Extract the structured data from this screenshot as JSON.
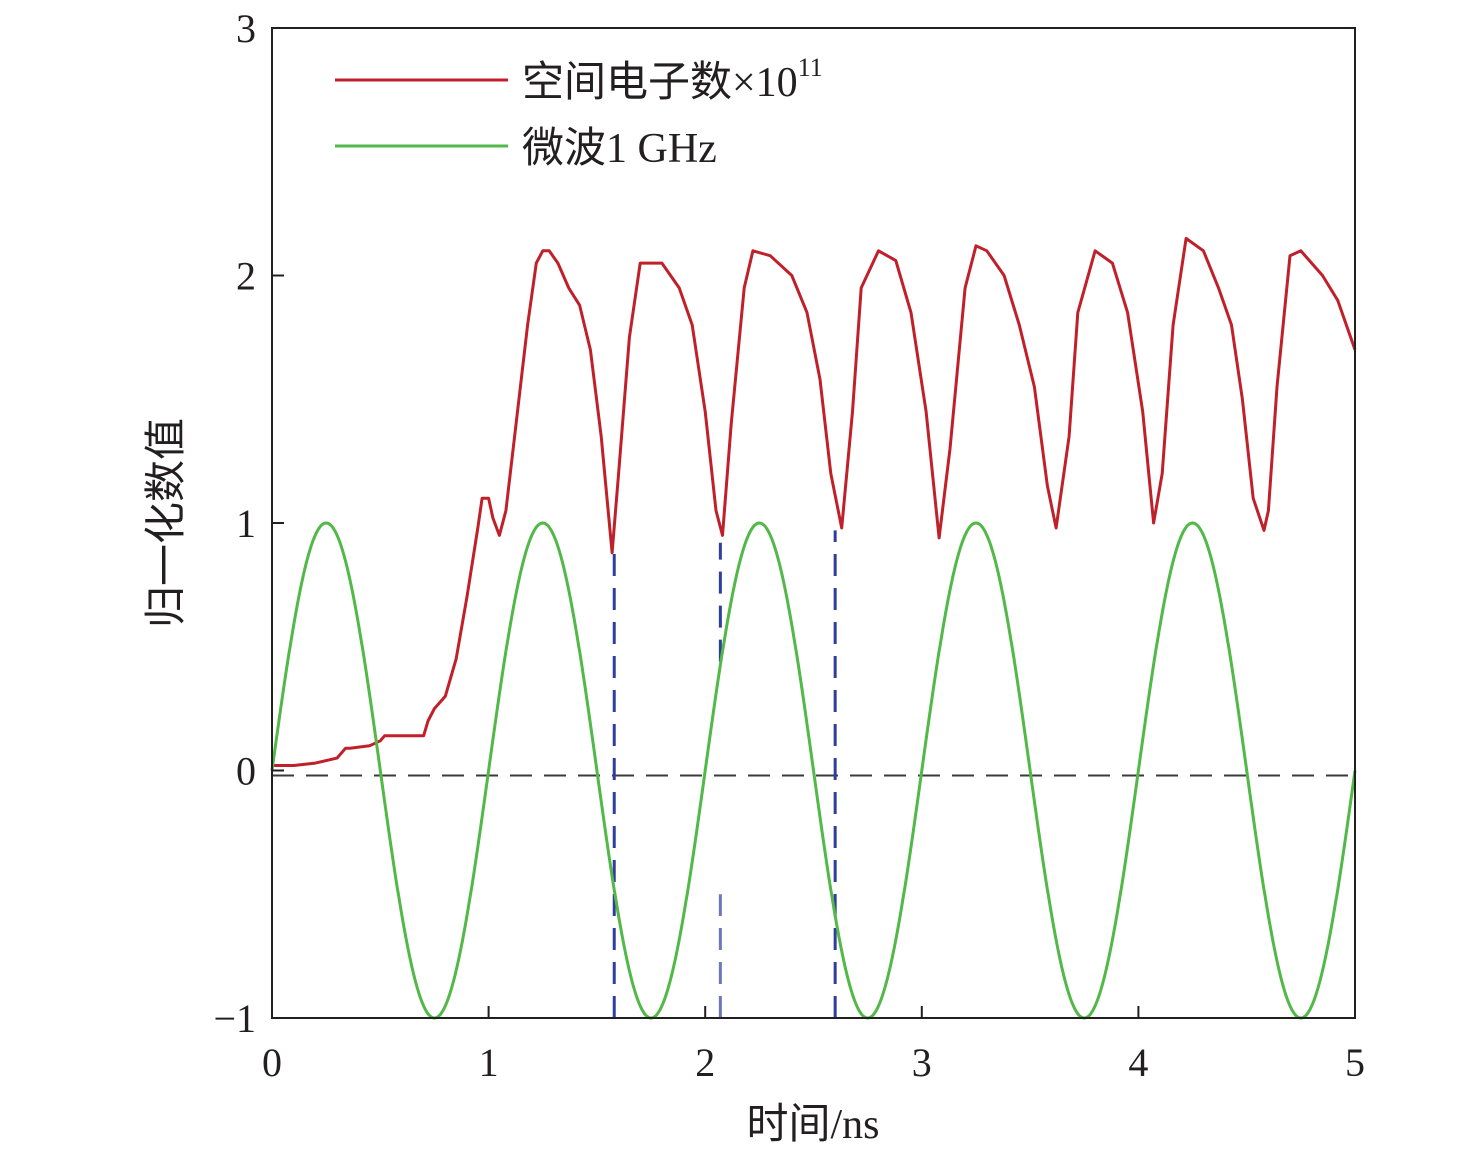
{
  "chart_data": {
    "type": "line",
    "xlabel": "时间/ns",
    "ylabel": "归一化数值",
    "xlim": [
      0,
      5
    ],
    "ylim": [
      -1,
      3
    ],
    "xticks": [
      "0",
      "1",
      "2",
      "3",
      "4",
      "5"
    ],
    "yticks": [
      "−1",
      "0",
      "1",
      "2",
      "3"
    ],
    "grid": false,
    "legend_position": "top-left",
    "legend": {
      "electrons": {
        "base": "空间电子数×10",
        "exp": "11"
      },
      "microwave": "微波1 GHz"
    },
    "series": [
      {
        "name": "空间电子数×10^11",
        "color": "#c0202a",
        "x": [
          0,
          0.1,
          0.2,
          0.3,
          0.34,
          0.36,
          0.45,
          0.5,
          0.52,
          0.55,
          0.6,
          0.7,
          0.72,
          0.75,
          0.8,
          0.85,
          0.9,
          0.95,
          0.97,
          1.0,
          1.02,
          1.05,
          1.08,
          1.12,
          1.18,
          1.22,
          1.25,
          1.28,
          1.32,
          1.37,
          1.42,
          1.47,
          1.52,
          1.57,
          1.6,
          1.65,
          1.7,
          1.76,
          1.8,
          1.88,
          1.94,
          2.0,
          2.05,
          2.08,
          2.12,
          2.18,
          2.22,
          2.3,
          2.4,
          2.47,
          2.53,
          2.58,
          2.63,
          2.68,
          2.72,
          2.8,
          2.88,
          2.95,
          3.02,
          3.08,
          3.13,
          3.2,
          3.25,
          3.3,
          3.38,
          3.45,
          3.52,
          3.58,
          3.62,
          3.68,
          3.72,
          3.8,
          3.88,
          3.95,
          4.02,
          4.07,
          4.11,
          4.16,
          4.22,
          4.3,
          4.37,
          4.43,
          4.48,
          4.53,
          4.58,
          4.6,
          4.64,
          4.7,
          4.75,
          4.85,
          4.92,
          5.0
        ],
        "y": [
          0.02,
          0.02,
          0.03,
          0.05,
          0.09,
          0.09,
          0.1,
          0.12,
          0.14,
          0.14,
          0.14,
          0.14,
          0.2,
          0.25,
          0.3,
          0.45,
          0.7,
          0.98,
          1.1,
          1.1,
          1.02,
          0.95,
          1.05,
          1.35,
          1.8,
          2.05,
          2.1,
          2.1,
          2.05,
          1.95,
          1.88,
          1.7,
          1.35,
          0.88,
          1.2,
          1.75,
          2.05,
          2.05,
          2.05,
          1.95,
          1.8,
          1.45,
          1.05,
          0.95,
          1.4,
          1.95,
          2.1,
          2.08,
          2.0,
          1.85,
          1.58,
          1.2,
          0.98,
          1.45,
          1.95,
          2.1,
          2.06,
          1.85,
          1.45,
          0.94,
          1.3,
          1.95,
          2.12,
          2.1,
          2.0,
          1.8,
          1.55,
          1.15,
          0.98,
          1.35,
          1.85,
          2.1,
          2.05,
          1.85,
          1.45,
          1.0,
          1.2,
          1.8,
          2.15,
          2.1,
          1.95,
          1.8,
          1.5,
          1.1,
          0.97,
          1.05,
          1.55,
          2.08,
          2.1,
          2.0,
          1.9,
          1.7
        ]
      },
      {
        "name": "微波1 GHz",
        "color": "#52b848",
        "function": "sin(2*pi*t)",
        "frequency_ghz": 1
      }
    ],
    "reference_lines": [
      {
        "kind": "horizontal",
        "y": -0.02,
        "style": "dashed",
        "color": "#3a3a3a"
      },
      {
        "kind": "vertical",
        "x": 1.58,
        "y_from": -1,
        "y_to": 0.9,
        "style": "dashed",
        "color": "#2e3e9a"
      },
      {
        "kind": "vertical",
        "x": 2.07,
        "y_from": 0.44,
        "y_to": 0.92,
        "style": "dashed",
        "color": "#2e3e9a"
      },
      {
        "kind": "vertical",
        "x": 2.07,
        "y_from": -1,
        "y_to": -0.5,
        "style": "dashed",
        "color": "#2e3e9a",
        "faint": true
      },
      {
        "kind": "vertical",
        "x": 2.6,
        "y_from": -1,
        "y_to": 0.97,
        "style": "dashed",
        "color": "#2e3e9a"
      }
    ]
  }
}
